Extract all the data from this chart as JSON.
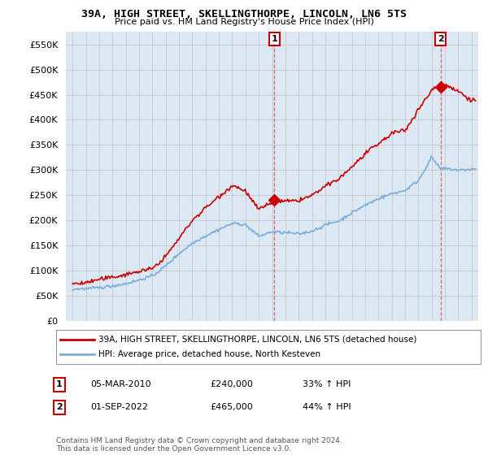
{
  "title": "39A, HIGH STREET, SKELLINGTHORPE, LINCOLN, LN6 5TS",
  "subtitle": "Price paid vs. HM Land Registry's House Price Index (HPI)",
  "ylim": [
    0,
    575000
  ],
  "yticks": [
    0,
    50000,
    100000,
    150000,
    200000,
    250000,
    300000,
    350000,
    400000,
    450000,
    500000,
    550000
  ],
  "xlim_start": 1994.5,
  "xlim_end": 2025.5,
  "grid_color": "#cccccc",
  "background_color": "#ffffff",
  "plot_bg_color": "#dce9f5",
  "hpi_color": "#7aaddb",
  "price_color": "#cc0000",
  "fill_color": "#dce9f5",
  "transaction1_x": 2010.17,
  "transaction1_y": 240000,
  "transaction2_x": 2022.67,
  "transaction2_y": 465000,
  "legend_line1": "39A, HIGH STREET, SKELLINGTHORPE, LINCOLN, LN6 5TS (detached house)",
  "legend_line2": "HPI: Average price, detached house, North Kesteven",
  "label1_date": "05-MAR-2010",
  "label1_price": "£240,000",
  "label1_hpi": "33% ↑ HPI",
  "label2_date": "01-SEP-2022",
  "label2_price": "£465,000",
  "label2_hpi": "44% ↑ HPI",
  "footnote": "Contains HM Land Registry data © Crown copyright and database right 2024.\nThis data is licensed under the Open Government Licence v3.0."
}
